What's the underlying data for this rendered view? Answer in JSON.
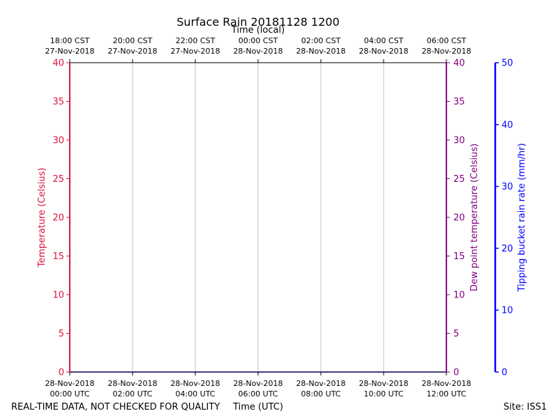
{
  "chart_data": {
    "type": "line",
    "title": "Surface Rain 20181128 1200",
    "top_xlabel": "Time (local)",
    "xlabel": "Time (UTC)",
    "x_ticks_utc": [
      [
        "28-Nov-2018",
        "00:00 UTC"
      ],
      [
        "28-Nov-2018",
        "02:00 UTC"
      ],
      [
        "28-Nov-2018",
        "04:00 UTC"
      ],
      [
        "28-Nov-2018",
        "06:00 UTC"
      ],
      [
        "28-Nov-2018",
        "08:00 UTC"
      ],
      [
        "28-Nov-2018",
        "10:00 UTC"
      ],
      [
        "28-Nov-2018",
        "12:00 UTC"
      ]
    ],
    "x_ticks_local": [
      [
        "18:00 CST",
        "27-Nov-2018"
      ],
      [
        "20:00 CST",
        "27-Nov-2018"
      ],
      [
        "22:00 CST",
        "27-Nov-2018"
      ],
      [
        "00:00 CST",
        "28-Nov-2018"
      ],
      [
        "02:00 CST",
        "28-Nov-2018"
      ],
      [
        "04:00 CST",
        "28-Nov-2018"
      ],
      [
        "06:00 CST",
        "28-Nov-2018"
      ]
    ],
    "x_hours": [
      0,
      2,
      4,
      6,
      8,
      10,
      12
    ],
    "grid": "vertical",
    "axes": {
      "temperature": {
        "label": "Temperature (Celsius)",
        "ylim": [
          0,
          40
        ],
        "ticks": [
          0,
          5,
          10,
          15,
          20,
          25,
          30,
          35,
          40
        ],
        "color": "#dc143c"
      },
      "dewpoint": {
        "label": "Dew point temperature (Celsius)",
        "ylim": [
          0,
          40
        ],
        "ticks": [
          0,
          5,
          10,
          15,
          20,
          25,
          30,
          35,
          40
        ],
        "color": "#800080"
      },
      "rain_rate": {
        "label": "Tipping bucket rain rate (mm/hr)",
        "ylim": [
          0,
          50
        ],
        "ticks": [
          0,
          10,
          20,
          30,
          40,
          50
        ],
        "color": "#0000ff"
      }
    },
    "series": [
      {
        "axis": "rain_rate",
        "x": [
          0,
          12
        ],
        "values": [
          0,
          0
        ],
        "color": "#0000ff"
      }
    ]
  },
  "footer": {
    "left_note": "REAL-TIME DATA, NOT CHECKED FOR QUALITY",
    "site": "Site: ISS1"
  }
}
